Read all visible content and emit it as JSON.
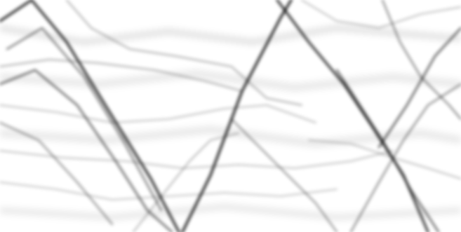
{
  "image": {
    "description_kind": "grayscale-texture",
    "background_color": "#ffffff",
    "ink_color": "#000000"
  }
}
